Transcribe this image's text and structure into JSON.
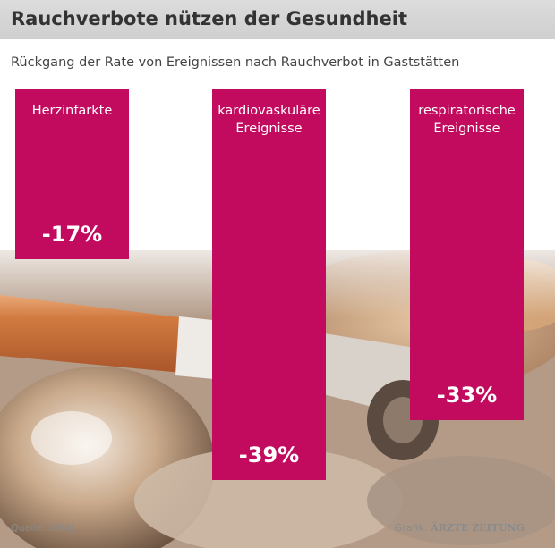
{
  "chart_data": {
    "type": "bar",
    "title": "Rauchverbote nützen der Gesundheit",
    "subtitle": "Rückgang der Rate von Ereignissen nach Rauchverbot in Gaststätten",
    "categories": [
      "Herzinfarkte",
      "kardiovaskuläre Ereignisse",
      "respiratorische Ereignisse"
    ],
    "category_lines": [
      [
        "Herzinfarkte"
      ],
      [
        "kardiovaskuläre",
        "Ereignisse"
      ],
      [
        "respiratorische",
        "Ereignisse"
      ]
    ],
    "values": [
      -17,
      -39,
      -33
    ],
    "value_labels": [
      "-17%",
      "-39%",
      "-33%"
    ],
    "bar_color": "#c20b5e",
    "grid": false,
    "legend": "none"
  },
  "footer": {
    "source": "Quelle: CMAJ",
    "credit_prefix": "Grafik:",
    "credit_brand": "ÄRZTE ZEITUNG"
  }
}
